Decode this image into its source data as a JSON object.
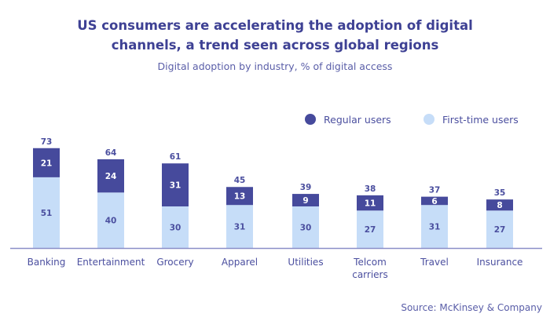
{
  "title_line1": "US consumers are accelerating the adoption of digital",
  "title_line2": "channels, a trend seen across global regions",
  "subtitle": "Digital adoption by industry, % of digital access",
  "source": "Source: McKinsey & Company",
  "colors": {
    "regular": "#464a9c",
    "first_time": "#c6ddf8",
    "text": "#4b4f9f"
  },
  "chart_data": {
    "type": "bar",
    "stacked": true,
    "title": "US consumers are accelerating the adoption of digital channels, a trend seen across global regions",
    "subtitle": "Digital adoption by industry, % of digital access",
    "categories": [
      [
        "Banking"
      ],
      [
        "Entertainment"
      ],
      [
        "Grocery"
      ],
      [
        "Apparel"
      ],
      [
        "Utilities"
      ],
      [
        "Telcom",
        "carriers"
      ],
      [
        "Travel"
      ],
      [
        "Insurance"
      ]
    ],
    "series": [
      {
        "name": "First-time users",
        "values": [
          51,
          40,
          30,
          31,
          30,
          27,
          31,
          27
        ]
      },
      {
        "name": "Regular users",
        "values": [
          21,
          24,
          31,
          13,
          9,
          11,
          6,
          8
        ]
      }
    ],
    "totals": [
      73,
      64,
      61,
      45,
      39,
      38,
      37,
      35
    ],
    "legend": [
      "Regular users",
      "First-time users"
    ],
    "legend_position": "top-right",
    "grid": false,
    "ylim": [
      0,
      75
    ]
  }
}
